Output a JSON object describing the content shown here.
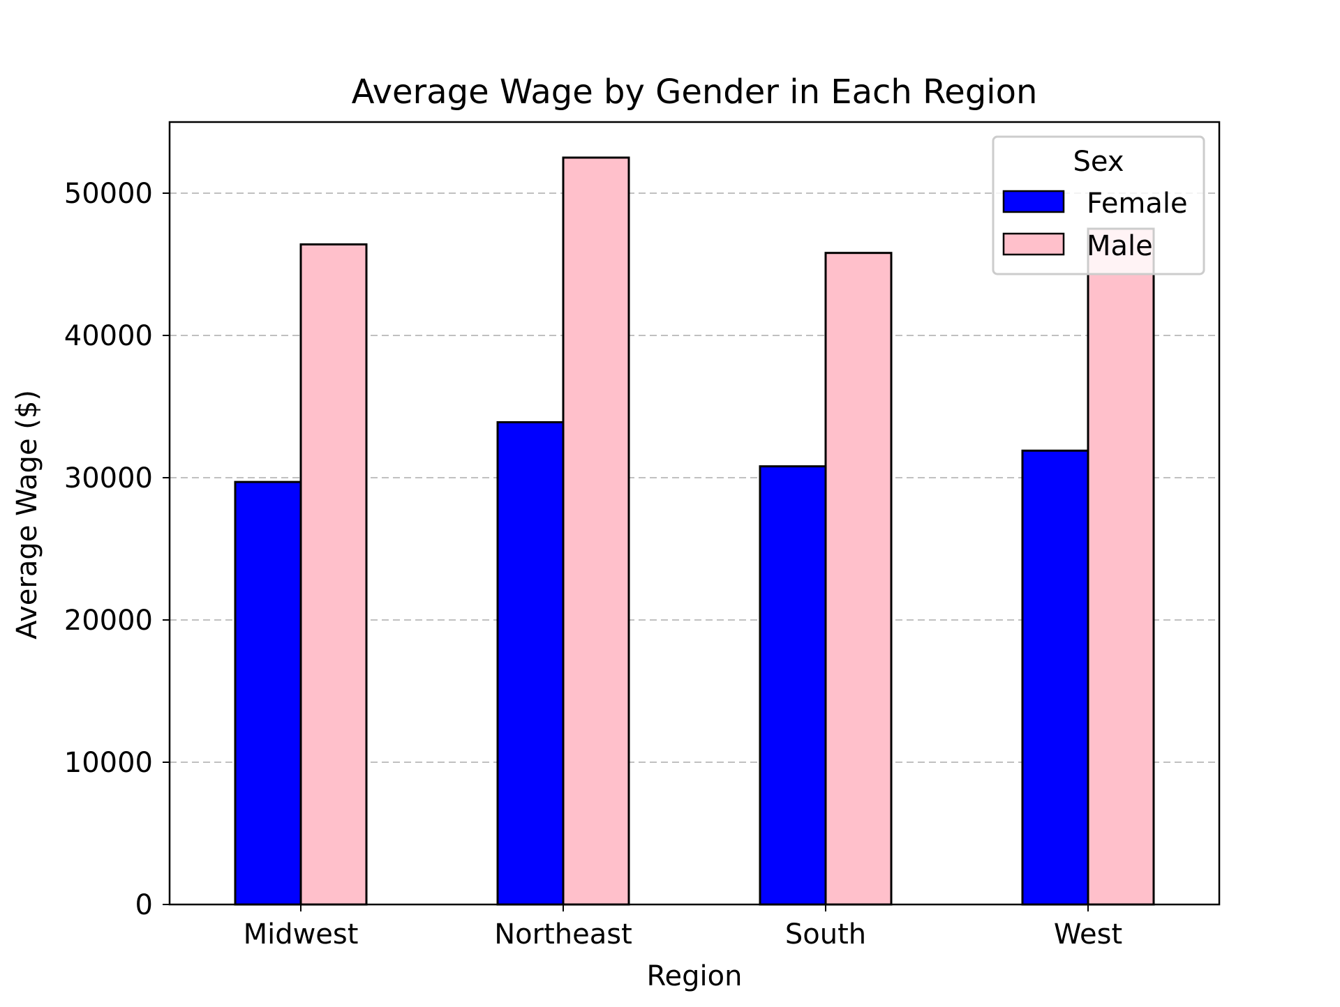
{
  "chart_data": {
    "type": "bar",
    "title": "Average Wage by Gender in Each Region",
    "xlabel": "Region",
    "ylabel": "Average Wage ($)",
    "categories": [
      "Midwest",
      "Northeast",
      "South",
      "West"
    ],
    "series": [
      {
        "name": "Female",
        "color": "#0000ff",
        "values": [
          29700,
          33900,
          30800,
          31900
        ]
      },
      {
        "name": "Male",
        "color": "#ffc0cb",
        "values": [
          46400,
          52500,
          45800,
          47500
        ]
      }
    ],
    "ylim": [
      0,
      55000
    ],
    "yticks": [
      0,
      10000,
      20000,
      30000,
      40000,
      50000
    ],
    "grid": "y-dashed",
    "legend": {
      "title": "Sex",
      "position": "top-right"
    }
  }
}
